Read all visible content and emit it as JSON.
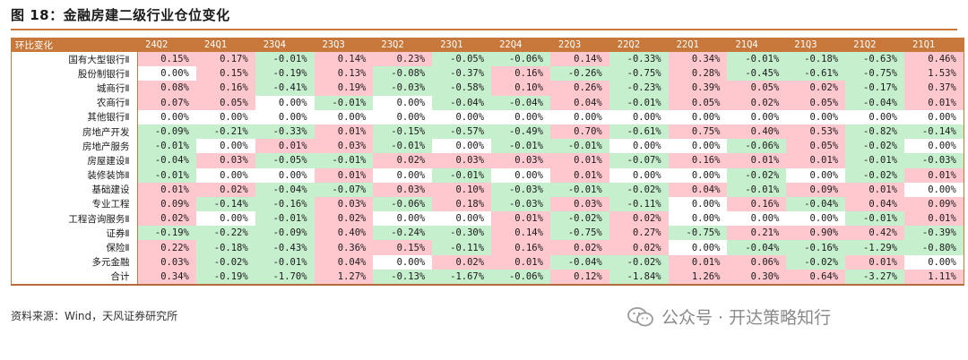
{
  "title": "图 18：金融房建二级行业仓位变化",
  "header": {
    "corner": "环比变化",
    "columns": [
      "24Q2",
      "24Q1",
      "23Q4",
      "23Q3",
      "23Q2",
      "23Q1",
      "22Q4",
      "22Q3",
      "22Q2",
      "22Q1",
      "21Q4",
      "21Q3",
      "21Q2",
      "21Q1"
    ]
  },
  "rows": [
    {
      "label": "国有大型银行Ⅱ",
      "values": [
        "0.15%",
        "0.17%",
        "-0.01%",
        "0.14%",
        "0.23%",
        "-0.05%",
        "-0.06%",
        "0.14%",
        "-0.33%",
        "0.34%",
        "-0.01%",
        "-0.18%",
        "-0.63%",
        "0.46%"
      ]
    },
    {
      "label": "股份制银行Ⅱ",
      "values": [
        "0.00%",
        "0.15%",
        "-0.19%",
        "0.13%",
        "-0.08%",
        "-0.37%",
        "0.16%",
        "-0.26%",
        "-0.75%",
        "0.28%",
        "-0.45%",
        "-0.61%",
        "-0.75%",
        "1.53%"
      ]
    },
    {
      "label": "城商行Ⅱ",
      "values": [
        "0.08%",
        "0.16%",
        "-0.41%",
        "0.19%",
        "-0.03%",
        "-0.58%",
        "0.10%",
        "0.26%",
        "-0.23%",
        "0.39%",
        "0.05%",
        "0.02%",
        "-0.17%",
        "0.37%"
      ]
    },
    {
      "label": "农商行Ⅱ",
      "values": [
        "0.07%",
        "0.05%",
        "0.00%",
        "-0.01%",
        "0.00%",
        "-0.04%",
        "-0.04%",
        "0.04%",
        "-0.01%",
        "0.05%",
        "0.02%",
        "0.05%",
        "-0.04%",
        "0.01%"
      ]
    },
    {
      "label": "其他银行Ⅱ",
      "values": [
        "0.00%",
        "0.00%",
        "0.00%",
        "0.00%",
        "0.00%",
        "0.00%",
        "0.00%",
        "0.00%",
        "0.00%",
        "0.00%",
        "0.00%",
        "0.00%",
        "0.00%",
        "0.00%"
      ]
    },
    {
      "label": "房地产开发",
      "values": [
        "-0.09%",
        "-0.21%",
        "-0.33%",
        "0.01%",
        "-0.15%",
        "-0.57%",
        "-0.49%",
        "0.70%",
        "-0.61%",
        "0.75%",
        "0.40%",
        "0.53%",
        "-0.82%",
        "-0.14%"
      ]
    },
    {
      "label": "房地产服务",
      "values": [
        "-0.01%",
        "0.00%",
        "0.01%",
        "0.03%",
        "-0.01%",
        "0.00%",
        "-0.01%",
        "-0.01%",
        "0.00%",
        "0.00%",
        "-0.06%",
        "0.05%",
        "-0.02%",
        "0.00%"
      ]
    },
    {
      "label": "房屋建设Ⅱ",
      "values": [
        "-0.04%",
        "0.03%",
        "-0.05%",
        "-0.01%",
        "0.02%",
        "0.03%",
        "0.03%",
        "0.01%",
        "-0.07%",
        "0.16%",
        "0.01%",
        "0.01%",
        "-0.01%",
        "-0.03%"
      ]
    },
    {
      "label": "装修装饰Ⅱ",
      "values": [
        "-0.01%",
        "0.00%",
        "0.00%",
        "0.01%",
        "0.00%",
        "-0.01%",
        "0.00%",
        "0.01%",
        "0.00%",
        "0.00%",
        "-0.02%",
        "0.00%",
        "-0.02%",
        "0.01%"
      ]
    },
    {
      "label": "基础建设",
      "values": [
        "0.01%",
        "0.02%",
        "-0.04%",
        "-0.07%",
        "0.03%",
        "0.10%",
        "-0.03%",
        "-0.01%",
        "-0.02%",
        "0.04%",
        "-0.01%",
        "0.09%",
        "0.01%",
        "0.00%"
      ]
    },
    {
      "label": "专业工程",
      "values": [
        "0.09%",
        "-0.14%",
        "-0.16%",
        "0.03%",
        "-0.06%",
        "0.18%",
        "-0.03%",
        "0.03%",
        "-0.11%",
        "0.00%",
        "0.16%",
        "-0.04%",
        "0.04%",
        "0.09%"
      ]
    },
    {
      "label": "工程咨询服务Ⅱ",
      "values": [
        "0.02%",
        "0.00%",
        "-0.01%",
        "0.02%",
        "0.00%",
        "0.00%",
        "0.01%",
        "-0.02%",
        "0.02%",
        "0.00%",
        "0.00%",
        "0.00%",
        "-0.01%",
        "0.01%"
      ]
    },
    {
      "label": "证券Ⅱ",
      "values": [
        "-0.19%",
        "-0.22%",
        "-0.09%",
        "0.40%",
        "-0.24%",
        "-0.30%",
        "0.14%",
        "-0.75%",
        "0.27%",
        "-0.75%",
        "0.21%",
        "0.90%",
        "0.42%",
        "-0.39%"
      ]
    },
    {
      "label": "保险Ⅱ",
      "values": [
        "0.22%",
        "-0.18%",
        "-0.43%",
        "0.36%",
        "0.15%",
        "-0.11%",
        "0.16%",
        "0.02%",
        "0.02%",
        "0.00%",
        "-0.04%",
        "-0.16%",
        "-1.29%",
        "-0.80%"
      ]
    },
    {
      "label": "多元金融",
      "values": [
        "0.03%",
        "-0.02%",
        "-0.01%",
        "0.04%",
        "0.00%",
        "0.02%",
        "0.01%",
        "-0.04%",
        "-0.02%",
        "0.01%",
        "0.06%",
        "-0.02%",
        "0.01%",
        "0.00%"
      ]
    },
    {
      "label": "合计",
      "values": [
        "0.34%",
        "-0.19%",
        "-1.70%",
        "1.27%",
        "-0.13%",
        "-1.67%",
        "-0.06%",
        "0.12%",
        "-1.84%",
        "1.26%",
        "0.30%",
        "0.64%",
        "-3.27%",
        "1.11%"
      ]
    }
  ],
  "colors": {
    "positive": "#ffc7ce",
    "negative": "#c6efce",
    "header": "#c8783a"
  },
  "source": "资料来源：Wind，天风证券研究所",
  "watermark": {
    "icon": "wechat-icon",
    "text": "公众号 · 开达策略知行"
  }
}
